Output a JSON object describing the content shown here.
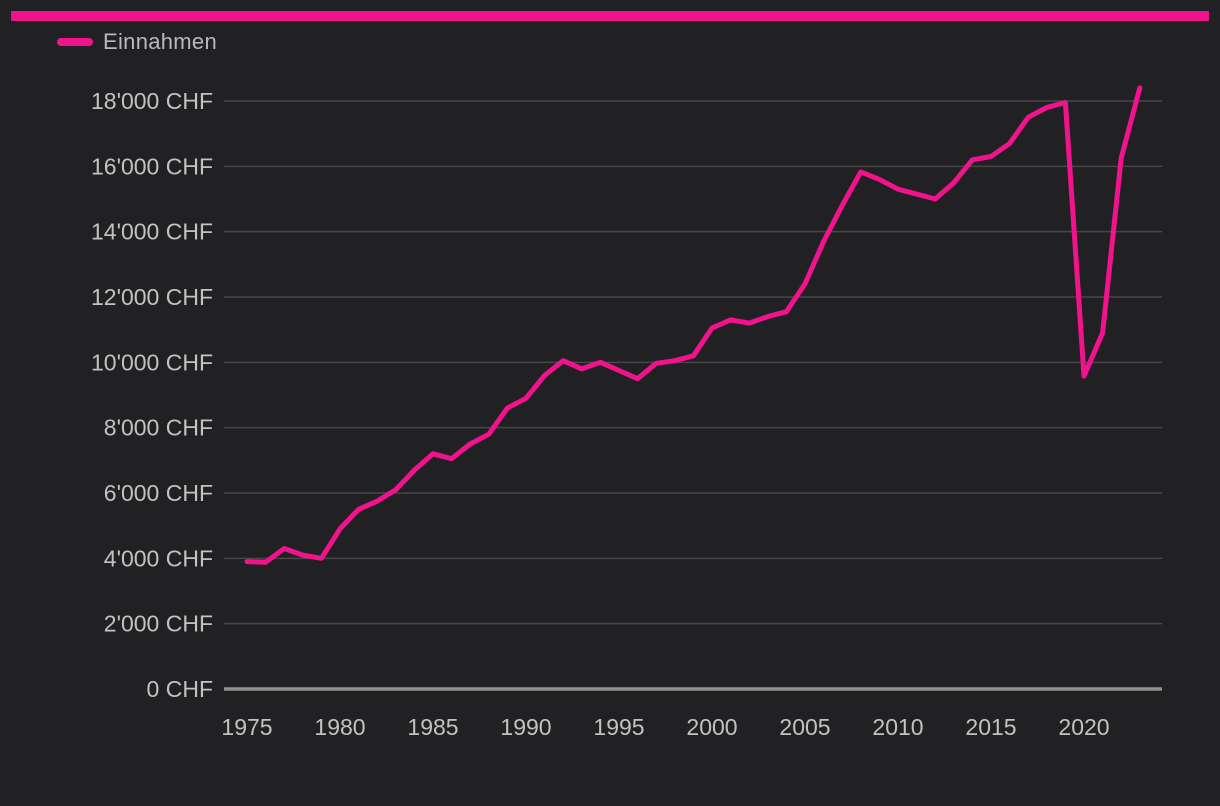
{
  "colors": {
    "background": "#212124",
    "accent_pink": "#f0138c",
    "gridline": "#47474b",
    "axis_line": "#919191",
    "tick_text": "#c2c2c2",
    "legend_text": "#b6babd"
  },
  "legend": {
    "items": [
      {
        "label": "Einnahmen",
        "color": "#f0138c"
      }
    ]
  },
  "chart_data": {
    "type": "line",
    "title": "",
    "xlabel": "",
    "ylabel": "",
    "unit": "CHF",
    "grid": "horizontal",
    "legend_position": "top-left",
    "ylim": [
      0,
      18800
    ],
    "x": [
      1975,
      1976,
      1977,
      1978,
      1979,
      1980,
      1981,
      1982,
      1983,
      1984,
      1985,
      1986,
      1987,
      1988,
      1989,
      1990,
      1991,
      1992,
      1993,
      1994,
      1995,
      1996,
      1997,
      1998,
      1999,
      2000,
      2001,
      2002,
      2003,
      2004,
      2005,
      2006,
      2007,
      2008,
      2009,
      2010,
      2011,
      2012,
      2013,
      2014,
      2015,
      2016,
      2017,
      2018,
      2019,
      2020,
      2021,
      2022,
      2023
    ],
    "series": [
      {
        "name": "Einnahmen",
        "color": "#f0138c",
        "values": [
          3900,
          3880,
          4300,
          4100,
          4000,
          4900,
          5500,
          5750,
          6100,
          6700,
          7200,
          7050,
          7500,
          7800,
          8600,
          8900,
          9600,
          10050,
          9800,
          10000,
          9750,
          9500,
          9970,
          10050,
          10200,
          11050,
          11300,
          11200,
          11400,
          11550,
          12400,
          13700,
          14800,
          15830,
          15600,
          15300,
          15150,
          15000,
          15500,
          16200,
          16300,
          16700,
          17500,
          17800,
          17950,
          9580,
          10900,
          16250,
          18400
        ]
      }
    ],
    "x_ticks": [
      1975,
      1980,
      1985,
      1990,
      1995,
      2000,
      2005,
      2010,
      2015,
      2020
    ],
    "y_ticks": [
      {
        "value": 0,
        "label": "0 CHF"
      },
      {
        "value": 2000,
        "label": "2'000 CHF"
      },
      {
        "value": 4000,
        "label": "4'000 CHF"
      },
      {
        "value": 6000,
        "label": "6'000 CHF"
      },
      {
        "value": 8000,
        "label": "8'000 CHF"
      },
      {
        "value": 10000,
        "label": "10'000 CHF"
      },
      {
        "value": 12000,
        "label": "12'000 CHF"
      },
      {
        "value": 14000,
        "label": "14'000 CHF"
      },
      {
        "value": 16000,
        "label": "16'000 CHF"
      },
      {
        "value": 18000,
        "label": "18'000 CHF"
      }
    ]
  }
}
